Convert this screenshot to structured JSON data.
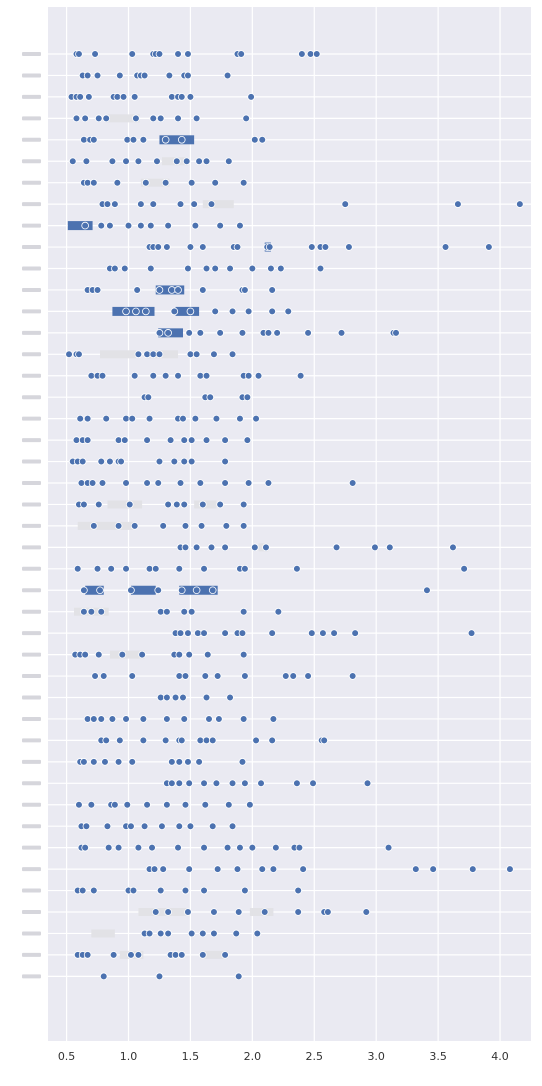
{
  "chart_data": {
    "type": "scatter",
    "title": "",
    "xlabel": "",
    "ylabel": "",
    "xlim": [
      0.35,
      4.25
    ],
    "xticks": [
      0.5,
      1.0,
      1.5,
      2.0,
      2.5,
      3.0,
      3.5,
      4.0
    ],
    "xtick_labels": [
      "0.5",
      "1.0",
      "1.5",
      "2.0",
      "2.5",
      "3.0",
      "3.5",
      "4.0"
    ],
    "grid": true,
    "background": "#eaeaf2",
    "point_color": "#4c72b0",
    "highlight_color": "#4c72b0",
    "label_box_color": "#e2e2e6",
    "category_labels": [
      "",
      "",
      "",
      "",
      "",
      "",
      "",
      "",
      "",
      "",
      "",
      "",
      "",
      "",
      "",
      "",
      "",
      "",
      "",
      "",
      "",
      "",
      "",
      "",
      "",
      "",
      "",
      "",
      "",
      "",
      "",
      "",
      "",
      "",
      "",
      "",
      "",
      "",
      "",
      "",
      "",
      "",
      "",
      "",
      "",
      "",
      "",
      "",
      "",
      "",
      "",
      "",
      "",
      "",
      "",
      "",
      "",
      "",
      "",
      "",
      "",
      "",
      "",
      "",
      "",
      "",
      "",
      "",
      "",
      "",
      "WI",
      "",
      ""
    ],
    "rows": [
      {
        "x": [
          0.58,
          0.6,
          0.73,
          1.03,
          1.2,
          1.22,
          1.25,
          1.4,
          1.48,
          1.88,
          1.91,
          2.4,
          2.47,
          2.52
        ]
      },
      {
        "x": [
          0.63,
          0.67,
          0.75,
          0.93,
          1.07,
          1.1,
          1.13,
          1.33,
          1.45,
          1.48,
          1.8
        ]
      },
      {
        "x": [
          0.54,
          0.58,
          0.61,
          0.68,
          0.88,
          0.91,
          0.96,
          1.05,
          1.35,
          1.4,
          1.43,
          1.5,
          1.99
        ]
      },
      {
        "x": [
          0.58,
          0.65,
          0.76,
          0.82,
          1.06,
          1.2,
          1.26,
          1.4,
          1.55,
          1.95
        ]
      },
      {
        "x": [
          0.64,
          0.69,
          0.72,
          0.99,
          1.04,
          1.12,
          1.3,
          1.43,
          2.02,
          2.08
        ]
      },
      {
        "x": [
          0.55,
          0.66,
          0.87,
          0.98,
          1.08,
          1.23,
          1.39,
          1.47,
          1.57,
          1.63,
          1.81
        ]
      },
      {
        "x": [
          0.64,
          0.67,
          0.72,
          0.91,
          1.14,
          1.3,
          1.51,
          1.7,
          1.93
        ]
      },
      {
        "x": [
          0.79,
          0.83,
          0.89,
          1.1,
          1.2,
          1.42,
          1.53,
          1.67,
          2.75,
          3.66,
          4.16
        ]
      },
      {
        "x": [
          0.65,
          0.78,
          0.85,
          1.0,
          1.1,
          1.18,
          1.32,
          1.54,
          1.74,
          1.9
        ]
      },
      {
        "x": [
          1.17,
          1.2,
          1.24,
          1.31,
          1.5,
          1.6,
          1.85,
          1.88,
          2.12,
          2.14,
          2.48,
          2.55,
          2.59,
          2.78,
          3.56,
          3.91
        ]
      },
      {
        "x": [
          0.85,
          0.89,
          0.97,
          1.18,
          1.48,
          1.63,
          1.7,
          1.82,
          2.0,
          2.15,
          2.23,
          2.55
        ]
      },
      {
        "x": [
          0.67,
          0.71,
          0.75,
          1.07,
          1.25,
          1.35,
          1.4,
          1.6,
          1.92,
          1.94,
          2.16
        ]
      },
      {
        "x": [
          0.98,
          1.06,
          1.14,
          1.37,
          1.5,
          1.7,
          1.84,
          1.97,
          2.16,
          2.29
        ]
      },
      {
        "x": [
          1.25,
          1.32,
          1.49,
          1.58,
          1.74,
          1.92,
          2.09,
          2.13,
          2.2,
          2.45,
          2.72,
          3.14,
          3.16
        ]
      },
      {
        "x": [
          0.52,
          0.58,
          0.6,
          1.08,
          1.15,
          1.2,
          1.25,
          1.5,
          1.55,
          1.69,
          1.84
        ]
      },
      {
        "x": [
          0.7,
          0.75,
          0.79,
          1.05,
          1.2,
          1.3,
          1.4,
          1.58,
          1.63,
          1.93,
          1.97,
          2.05,
          2.39
        ]
      },
      {
        "x": [
          1.13,
          1.16,
          1.62,
          1.66,
          1.92,
          1.96
        ]
      },
      {
        "x": [
          0.61,
          0.67,
          0.82,
          0.98,
          1.03,
          1.17,
          1.4,
          1.44,
          1.54,
          1.71,
          1.9,
          2.03
        ]
      },
      {
        "x": [
          0.58,
          0.63,
          0.67,
          0.92,
          0.97,
          1.15,
          1.34,
          1.45,
          1.51,
          1.63,
          1.78,
          1.96
        ]
      },
      {
        "x": [
          0.55,
          0.59,
          0.63,
          0.78,
          0.85,
          0.92,
          0.94,
          1.25,
          1.37,
          1.45,
          1.51,
          1.78
        ]
      },
      {
        "x": [
          0.62,
          0.67,
          0.71,
          0.79,
          0.98,
          1.15,
          1.24,
          1.42,
          1.58,
          1.78,
          1.97,
          2.13,
          2.81
        ]
      },
      {
        "x": [
          0.6,
          0.64,
          0.76,
          1.01,
          1.32,
          1.39,
          1.45,
          1.6,
          1.74,
          1.93
        ]
      },
      {
        "x": [
          0.72,
          0.92,
          1.05,
          1.28,
          1.46,
          1.59,
          1.79,
          1.93
        ]
      },
      {
        "x": [
          1.42,
          1.46,
          1.55,
          1.67,
          1.78,
          2.02,
          2.11,
          2.68,
          2.99,
          3.11,
          3.62
        ]
      },
      {
        "x": [
          0.59,
          0.75,
          0.86,
          0.98,
          1.17,
          1.22,
          1.41,
          1.61,
          1.9,
          1.94,
          2.36,
          3.71
        ]
      },
      {
        "x": [
          0.64,
          0.77,
          1.02,
          1.24,
          1.43,
          1.55,
          1.68,
          3.41
        ]
      },
      {
        "x": [
          0.64,
          0.7,
          0.78,
          1.26,
          1.31,
          1.45,
          1.51,
          1.93,
          2.21
        ]
      },
      {
        "x": [
          1.38,
          1.42,
          1.48,
          1.56,
          1.61,
          1.78,
          1.88,
          1.92,
          2.16,
          2.48,
          2.57,
          2.66,
          2.83,
          3.77
        ]
      },
      {
        "x": [
          0.57,
          0.61,
          0.65,
          0.76,
          0.95,
          1.11,
          1.37,
          1.41,
          1.49,
          1.64,
          1.93
        ]
      },
      {
        "x": [
          0.73,
          0.8,
          1.03,
          1.41,
          1.46,
          1.62,
          1.72,
          1.94,
          2.27,
          2.33,
          2.45,
          2.81
        ]
      },
      {
        "x": [
          1.26,
          1.31,
          1.38,
          1.44,
          1.63,
          1.82
        ]
      },
      {
        "x": [
          0.67,
          0.72,
          0.78,
          0.87,
          0.98,
          1.12,
          1.31,
          1.45,
          1.65,
          1.73,
          1.93,
          2.17
        ]
      },
      {
        "x": [
          0.78,
          0.82,
          0.93,
          1.12,
          1.3,
          1.41,
          1.43,
          1.58,
          1.63,
          1.68,
          2.03,
          2.16,
          2.56,
          2.58
        ]
      },
      {
        "x": [
          0.61,
          0.64,
          0.72,
          0.81,
          0.92,
          1.03,
          1.35,
          1.41,
          1.48,
          1.57,
          1.92
        ]
      },
      {
        "x": [
          1.31,
          1.35,
          1.41,
          1.49,
          1.61,
          1.71,
          1.84,
          1.94,
          2.07,
          2.36,
          2.49,
          2.93
        ]
      },
      {
        "x": [
          0.6,
          0.7,
          0.86,
          0.89,
          0.99,
          1.15,
          1.31,
          1.46,
          1.62,
          1.81,
          1.98
        ]
      },
      {
        "x": [
          0.62,
          0.66,
          0.83,
          0.98,
          1.02,
          1.13,
          1.27,
          1.41,
          1.5,
          1.68,
          1.84
        ]
      },
      {
        "x": [
          0.62,
          0.65,
          0.84,
          0.92,
          1.08,
          1.19,
          1.4,
          1.61,
          1.8,
          1.9,
          2.0,
          2.19,
          2.34,
          2.38,
          3.1
        ]
      },
      {
        "x": [
          1.17,
          1.21,
          1.28,
          1.49,
          1.72,
          1.88,
          2.08,
          2.17,
          2.41,
          3.32,
          3.46,
          3.78,
          4.08
        ]
      },
      {
        "x": [
          0.59,
          0.63,
          0.72,
          1.0,
          1.04,
          1.26,
          1.46,
          1.61,
          1.94,
          2.37
        ]
      },
      {
        "x": [
          1.22,
          1.32,
          1.48,
          1.69,
          1.89,
          2.1,
          2.37,
          2.58,
          2.61,
          2.92
        ]
      },
      {
        "x": [
          1.13,
          1.17,
          1.26,
          1.32,
          1.51,
          1.6,
          1.69,
          1.87,
          2.04
        ]
      },
      {
        "x": [
          0.59,
          0.63,
          0.67,
          0.88,
          1.02,
          1.08,
          1.34,
          1.38,
          1.43,
          1.6,
          1.78
        ]
      },
      {
        "x": [
          0.8,
          1.25,
          1.89
        ]
      }
    ],
    "highlights": [
      {
        "row": 4,
        "x0": 1.25,
        "x1": 1.53
      },
      {
        "row": 8,
        "x0": 0.51,
        "x1": 0.71
      },
      {
        "row": 9,
        "x0": 2.1,
        "x1": 2.15
      },
      {
        "row": 11,
        "x0": 1.22,
        "x1": 1.45
      },
      {
        "row": 12,
        "x0": 0.87,
        "x1": 1.21
      },
      {
        "row": 12,
        "x0": 1.38,
        "x1": 1.57
      },
      {
        "row": 13,
        "x0": 1.24,
        "x1": 1.44
      },
      {
        "row": 25,
        "x0": 0.65,
        "x1": 0.8
      },
      {
        "row": 25,
        "x0": 1.02,
        "x1": 1.22
      },
      {
        "row": 25,
        "x0": 1.41,
        "x1": 1.72
      }
    ],
    "label_boxes": [
      {
        "row": 3,
        "x0": 0.82,
        "x1": 1.09
      },
      {
        "row": 5,
        "x0": 1.27,
        "x1": 1.48
      },
      {
        "row": 6,
        "x0": 1.1,
        "x1": 1.33
      },
      {
        "row": 7,
        "x0": 1.6,
        "x1": 1.85
      },
      {
        "row": 14,
        "x0": 0.77,
        "x1": 1.06
      },
      {
        "row": 14,
        "x0": 1.15,
        "x1": 1.4
      },
      {
        "row": 21,
        "x0": 0.83,
        "x1": 1.11
      },
      {
        "row": 21,
        "x0": 1.53,
        "x1": 1.71
      },
      {
        "row": 22,
        "x0": 0.59,
        "x1": 1.05
      },
      {
        "row": 23,
        "x0": 2.05,
        "x1": 2.13
      },
      {
        "row": 26,
        "x0": 0.56,
        "x1": 0.84
      },
      {
        "row": 28,
        "x0": 0.85,
        "x1": 1.13
      },
      {
        "row": 40,
        "x0": 1.08,
        "x1": 1.48
      },
      {
        "row": 40,
        "x0": 1.98,
        "x1": 2.17
      },
      {
        "row": 41,
        "x0": 0.7,
        "x1": 0.89
      },
      {
        "row": 42,
        "x0": 0.93,
        "x1": 1.12
      },
      {
        "row": 42,
        "x0": 1.58,
        "x1": 1.8
      }
    ]
  }
}
